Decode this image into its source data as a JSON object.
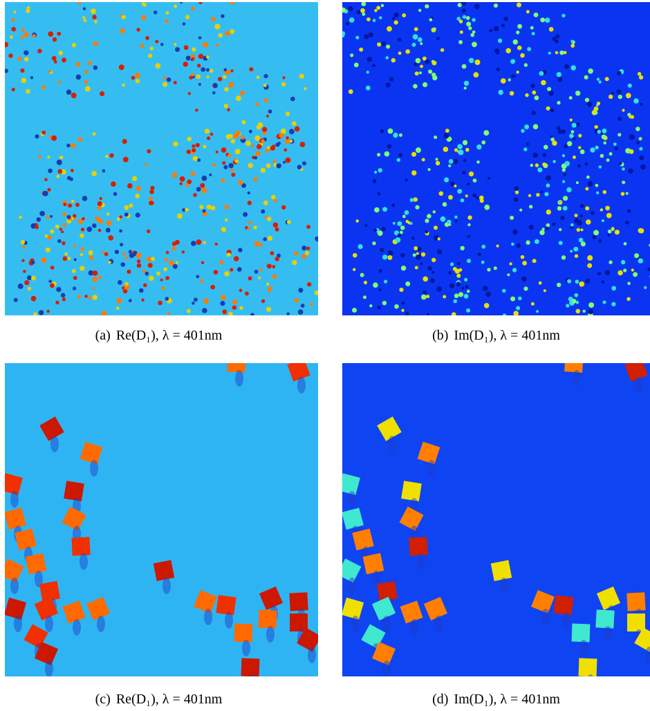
{
  "figure": {
    "panels": [
      {
        "label": "(a)",
        "caption": "Re(D₁), λ = 401nm"
      },
      {
        "label": "(b)",
        "caption": "Im(D₁), λ = 401nm"
      },
      {
        "label": "(c)",
        "caption": "Re(D₁), λ = 401nm"
      },
      {
        "label": "(d)",
        "caption": "Im(D₁), λ = 401nm"
      }
    ]
  }
}
